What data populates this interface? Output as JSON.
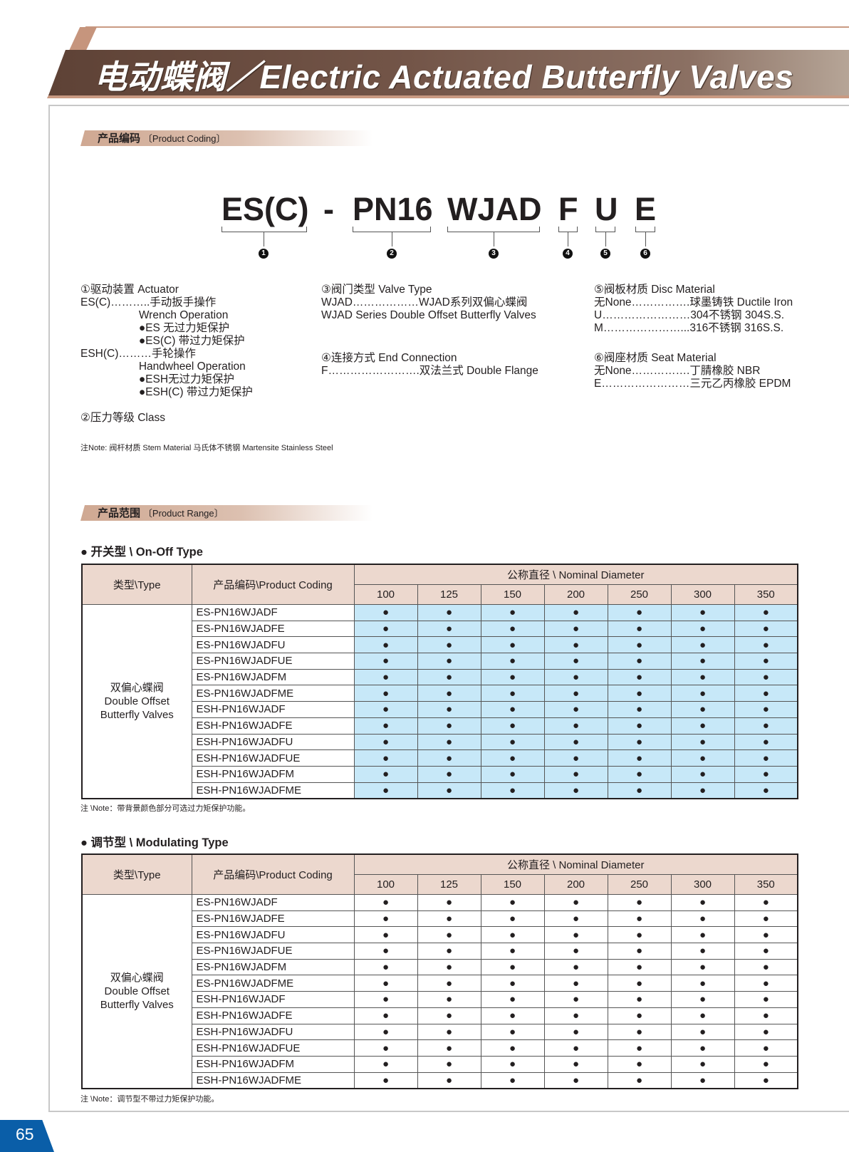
{
  "header": {
    "title": "电动蝶阀／Electric Actuated Butterfly Valves"
  },
  "coding_section": {
    "title_cn": "产品编码",
    "title_en": "〔Product Coding〕"
  },
  "code": {
    "parts": [
      "ES(C)",
      "-",
      "PN16",
      "WJAD",
      "F",
      "U",
      "E"
    ],
    "numbers": [
      "1",
      "2",
      "3",
      "4",
      "5",
      "6"
    ]
  },
  "legend": {
    "actuator": [
      "①驱动装置 Actuator",
      "ES(C)………..手动扳手操作",
      "                   Wrench Operation",
      "                   ●ES 无过力矩保护",
      "                   ●ES(C) 带过力矩保护",
      "ESH(C)………手轮操作",
      "                   Handwheel Operation",
      "                   ●ESH无过力矩保护",
      "                   ●ESH(C) 带过力矩保护"
    ],
    "class": "②压力等级 Class",
    "valve_type": [
      "③阀门类型 Valve Type",
      "WJAD………………WJAD系列双偏心蝶阀",
      "WJAD Series Double Offset Butterfly Valves"
    ],
    "end_connection": [
      "④连接方式 End Connection",
      "F…………………….双法兰式 Double Flange"
    ],
    "disc_material": [
      "⑤阀板材质 Disc Material",
      "无None…………….球墨铸铁 Ductile Iron",
      "U……………………304不锈钢 304S.S.",
      "M…………………...316不锈钢 316S.S."
    ],
    "seat_material": [
      "⑥阀座材质 Seat Material",
      "无None…………….丁腈橡胶 NBR",
      "E……………………三元乙丙橡胶 EPDM"
    ],
    "note": "注Note: 阀杆材质 Stem Material 马氏体不锈钢 Martensite Stainless Steel"
  },
  "range_section": {
    "title_cn": "产品范围",
    "title_en": "〔Product Range〕"
  },
  "colors": {
    "header_bg": "#ecd8ce",
    "highlight": "#c7e8f8",
    "band": "#735548",
    "page_badge": "#0a5ea8"
  },
  "tables": [
    {
      "title": "● 开关型 \\ On-Off Type",
      "type_header": "类型\\Type",
      "code_header": "产品编码\\Product Coding",
      "diameter_header": "公称直径 \\ Nominal Diameter",
      "sizes": [
        "100",
        "125",
        "150",
        "200",
        "250",
        "300",
        "350"
      ],
      "type_label": [
        "双偏心蝶阀",
        "Double Offset",
        "Butterfly Valves"
      ],
      "mark": "●",
      "highlighted": true,
      "rows": [
        "ES-PN16WJADF",
        "ES-PN16WJADFE",
        "ES-PN16WJADFU",
        "ES-PN16WJADFUE",
        "ES-PN16WJADFM",
        "ES-PN16WJADFME",
        "ESH-PN16WJADF",
        "ESH-PN16WJADFE",
        "ESH-PN16WJADFU",
        "ESH-PN16WJADFUE",
        "ESH-PN16WJADFM",
        "ESH-PN16WJADFME"
      ],
      "available": "all",
      "note": "注 \\Note：带背景颜色部分可选过力矩保护功能。"
    },
    {
      "title": "● 调节型 \\ Modulating Type",
      "type_header": "类型\\Type",
      "code_header": "产品编码\\Product Coding",
      "diameter_header": "公称直径 \\ Nominal Diameter",
      "sizes": [
        "100",
        "125",
        "150",
        "200",
        "250",
        "300",
        "350"
      ],
      "type_label": [
        "双偏心蝶阀",
        "Double Offset",
        "Butterfly Valves"
      ],
      "mark": "●",
      "highlighted": false,
      "rows": [
        "ES-PN16WJADF",
        "ES-PN16WJADFE",
        "ES-PN16WJADFU",
        "ES-PN16WJADFUE",
        "ES-PN16WJADFM",
        "ES-PN16WJADFME",
        "ESH-PN16WJADF",
        "ESH-PN16WJADFE",
        "ESH-PN16WJADFU",
        "ESH-PN16WJADFUE",
        "ESH-PN16WJADFM",
        "ESH-PN16WJADFME"
      ],
      "available": "all",
      "note": "注 \\Note：调节型不带过力矩保护功能。"
    }
  ],
  "page_number": "65"
}
